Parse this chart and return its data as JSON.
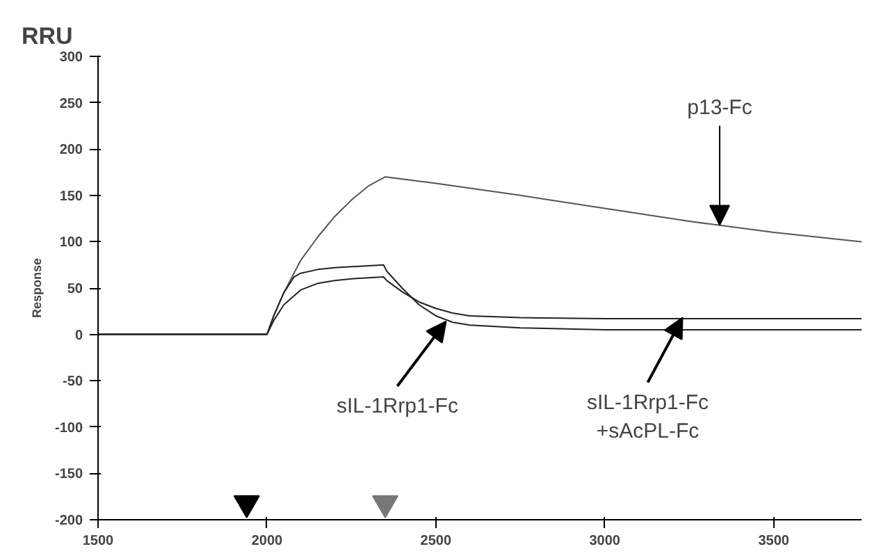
{
  "chart_data": {
    "type": "line",
    "title": "RRU",
    "ylabel": "Response",
    "xlim": [
      1500,
      3760
    ],
    "ylim": [
      -200,
      300
    ],
    "xticks": [
      1500,
      2000,
      2500,
      3000,
      3500
    ],
    "yticks": [
      -200,
      -150,
      -100,
      -50,
      0,
      50,
      100,
      150,
      200,
      250,
      300
    ],
    "grid": false,
    "marker": "none",
    "line_style": "solid",
    "series": [
      {
        "color": "#555555",
        "x": [
          1500,
          1750,
          1995,
          2000,
          2020,
          2050,
          2100,
          2150,
          2200,
          2250,
          2300,
          2350,
          2500,
          2750,
          3000,
          3250,
          3500,
          3760
        ],
        "values": [
          0,
          0,
          0,
          0,
          20,
          45,
          80,
          105,
          127,
          145,
          160,
          170,
          163,
          150,
          136,
          122,
          110,
          100
        ]
      },
      {
        "color": "#222222",
        "x": [
          1500,
          1750,
          1995,
          2000,
          2020,
          2050,
          2080,
          2100,
          2150,
          2200,
          2250,
          2300,
          2345,
          2355,
          2400,
          2450,
          2500,
          2550,
          2600,
          2750,
          3000,
          3500,
          3760
        ],
        "values": [
          0,
          0,
          0,
          0,
          20,
          45,
          62,
          66,
          70,
          72,
          73,
          74,
          75,
          68,
          50,
          32,
          20,
          13,
          10,
          7,
          5,
          5,
          5
        ]
      },
      {
        "color": "#222222",
        "x": [
          1500,
          1750,
          1995,
          2000,
          2020,
          2050,
          2100,
          2150,
          2200,
          2250,
          2300,
          2345,
          2355,
          2400,
          2450,
          2500,
          2550,
          2600,
          2750,
          3000,
          3500,
          3760
        ],
        "values": [
          0,
          0,
          0,
          0,
          15,
          32,
          48,
          55,
          58,
          60,
          61,
          62,
          58,
          46,
          35,
          28,
          23,
          20,
          18,
          17,
          17,
          17
        ]
      },
      {
        "type": "scatter",
        "marker": "triangle",
        "x": [
          1940,
          2350
        ],
        "values": [
          -182,
          -182
        ],
        "colors": [
          "#000000",
          "#777777"
        ]
      }
    ],
    "annotations": [
      {
        "text": "p13-Fc",
        "x": 3340,
        "y": 118
      },
      {
        "text": "sIL-1Rrp1-Fc",
        "x": 2530,
        "y": 14
      },
      {
        "text": "sIL-1Rrp1-Fc\n+sAcPL-Fc",
        "x": 3230,
        "y": 18
      }
    ]
  }
}
